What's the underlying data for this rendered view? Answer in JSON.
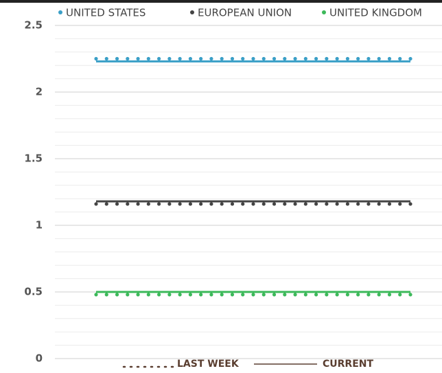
{
  "chart_data": {
    "type": "line",
    "categories": [
      null,
      null,
      null,
      null,
      null,
      null,
      null,
      null,
      null,
      null,
      null,
      null,
      null,
      null,
      null,
      null,
      null,
      null,
      null,
      null,
      null,
      null,
      null,
      null,
      null,
      null,
      null,
      null,
      null,
      null,
      null
    ],
    "series": [
      {
        "name": "UNITED STATES",
        "color": "#3a9fc7",
        "values": [
          2.23,
          2.23,
          2.23,
          2.23,
          2.23,
          2.23,
          2.23,
          2.23,
          2.23,
          2.23,
          2.23,
          2.23,
          2.23,
          2.23,
          2.23,
          2.23,
          2.23,
          2.23,
          2.23,
          2.23,
          2.23,
          2.23,
          2.23,
          2.23,
          2.23,
          2.23,
          2.23,
          2.23,
          2.23,
          2.23,
          2.23
        ],
        "last_week": [
          2.25,
          2.25,
          2.25,
          2.25,
          2.25,
          2.25,
          2.25,
          2.25,
          2.25,
          2.25,
          2.25,
          2.25,
          2.25,
          2.25,
          2.25,
          2.25,
          2.25,
          2.25,
          2.25,
          2.25,
          2.25,
          2.25,
          2.25,
          2.25,
          2.25,
          2.25,
          2.25,
          2.25,
          2.25,
          2.25,
          2.25
        ]
      },
      {
        "name": "EUROPEAN UNION",
        "color": "#444444",
        "values": [
          1.18,
          1.18,
          1.18,
          1.18,
          1.18,
          1.18,
          1.18,
          1.18,
          1.18,
          1.18,
          1.18,
          1.18,
          1.18,
          1.18,
          1.18,
          1.18,
          1.18,
          1.18,
          1.18,
          1.18,
          1.18,
          1.18,
          1.18,
          1.18,
          1.18,
          1.18,
          1.18,
          1.18,
          1.18,
          1.18,
          1.18
        ],
        "last_week": [
          1.16,
          1.16,
          1.16,
          1.16,
          1.16,
          1.16,
          1.16,
          1.16,
          1.16,
          1.16,
          1.16,
          1.16,
          1.16,
          1.16,
          1.16,
          1.16,
          1.16,
          1.16,
          1.16,
          1.16,
          1.16,
          1.16,
          1.16,
          1.16,
          1.16,
          1.16,
          1.16,
          1.16,
          1.16,
          1.16,
          1.16
        ]
      },
      {
        "name": "UNITED KINGDOM",
        "color": "#3cb95a",
        "values": [
          0.5,
          0.5,
          0.5,
          0.5,
          0.5,
          0.5,
          0.5,
          0.5,
          0.5,
          0.5,
          0.5,
          0.5,
          0.5,
          0.5,
          0.5,
          0.5,
          0.5,
          0.5,
          0.5,
          0.5,
          0.5,
          0.5,
          0.5,
          0.5,
          0.5,
          0.5,
          0.5,
          0.5,
          0.5,
          0.5,
          0.5
        ],
        "last_week": [
          0.48,
          0.48,
          0.48,
          0.48,
          0.48,
          0.48,
          0.48,
          0.48,
          0.48,
          0.48,
          0.48,
          0.48,
          0.48,
          0.48,
          0.48,
          0.48,
          0.48,
          0.48,
          0.48,
          0.48,
          0.48,
          0.48,
          0.48,
          0.48,
          0.48,
          0.48,
          0.48,
          0.48,
          0.48,
          0.48,
          0.48
        ]
      }
    ],
    "line_styles": [
      "LAST WEEK",
      "CURRENT"
    ],
    "ylim": [
      0,
      2.5
    ],
    "yticks": [
      0,
      0.5,
      1,
      1.5,
      2,
      2.5
    ],
    "minor_yticks": [
      0.1,
      0.2,
      0.3,
      0.4,
      0.6,
      0.7,
      0.8,
      0.9,
      1.1,
      1.2,
      1.3,
      1.4,
      1.6,
      1.7,
      1.8,
      1.9,
      2.1,
      2.2,
      2.3,
      2.4
    ],
    "grid": true,
    "legend": "top"
  }
}
